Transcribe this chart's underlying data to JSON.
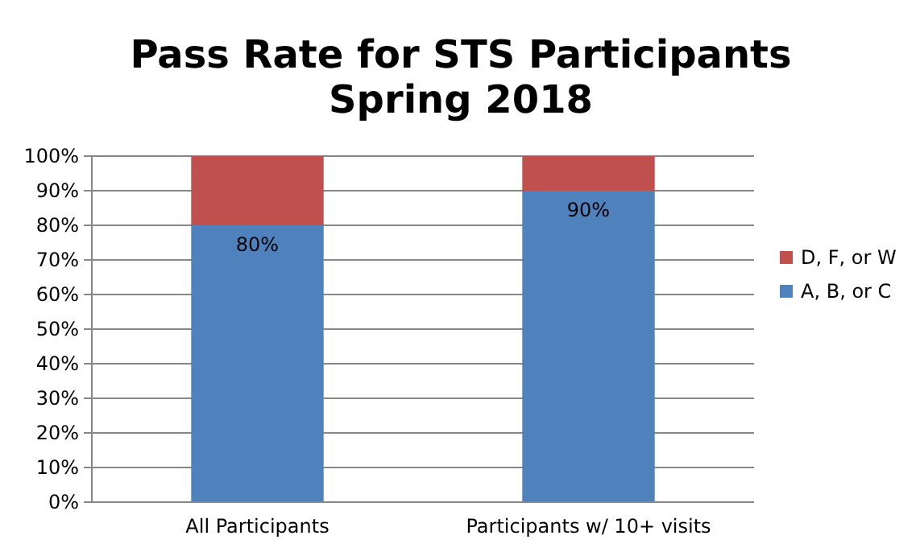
{
  "chart_data": {
    "type": "bar",
    "title": "Pass Rate for STS Participants\nSpring 2018",
    "categories": [
      "All Participants",
      "Participants w/ 10+ visits"
    ],
    "stacked": true,
    "series": [
      {
        "name": "A, B, or C",
        "color": "#4f81bd",
        "values": [
          80,
          90
        ],
        "value_labels": [
          "80%",
          "90%"
        ]
      },
      {
        "name": "D, F, or W",
        "color": "#c0504d",
        "values": [
          20,
          10
        ],
        "value_labels": [
          null,
          null
        ]
      }
    ],
    "ylim": [
      0,
      100
    ],
    "yticks": [
      {
        "value": 0,
        "label": "0%"
      },
      {
        "value": 10,
        "label": "10%"
      },
      {
        "value": 20,
        "label": "20%"
      },
      {
        "value": 30,
        "label": "30%"
      },
      {
        "value": 40,
        "label": "40%"
      },
      {
        "value": 50,
        "label": "50%"
      },
      {
        "value": 60,
        "label": "60%"
      },
      {
        "value": 70,
        "label": "70%"
      },
      {
        "value": 80,
        "label": "80%"
      },
      {
        "value": 90,
        "label": "90%"
      },
      {
        "value": 100,
        "label": "100%"
      }
    ],
    "grid": "y",
    "legend": "right"
  }
}
